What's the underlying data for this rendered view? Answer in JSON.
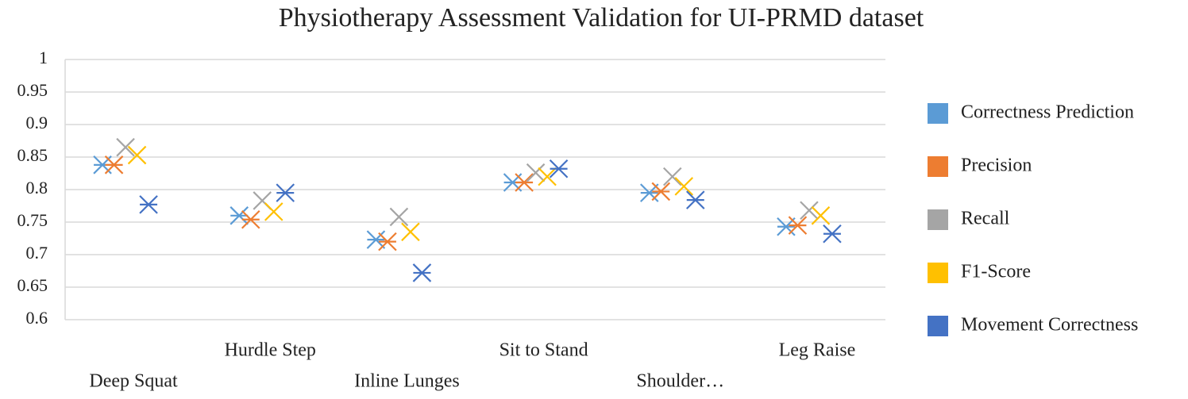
{
  "chart_data": {
    "type": "scatter",
    "title": "Physiotherapy Assessment Validation for UI-PRMD dataset",
    "categories": [
      "Deep Squat",
      "Hurdle Step",
      "Inline Lunges",
      "Sit to Stand",
      "Shoulder…",
      "Leg Raise"
    ],
    "series": [
      {
        "name": "Correctness Prediction",
        "color": "#5b9bd5",
        "marker": "star",
        "values": [
          0.838,
          0.76,
          0.723,
          0.811,
          0.795,
          0.743
        ]
      },
      {
        "name": "Precision",
        "color": "#ed7d31",
        "marker": "star",
        "values": [
          0.838,
          0.754,
          0.72,
          0.811,
          0.797,
          0.745
        ]
      },
      {
        "name": "Recall",
        "color": "#a5a5a5",
        "marker": "x",
        "values": [
          0.865,
          0.783,
          0.758,
          0.826,
          0.82,
          0.768
        ]
      },
      {
        "name": "F1-Score",
        "color": "#ffc000",
        "marker": "x",
        "values": [
          0.853,
          0.766,
          0.735,
          0.82,
          0.805,
          0.76
        ]
      },
      {
        "name": "Movement Correctness",
        "color": "#4472c4",
        "marker": "star",
        "values": [
          0.777,
          0.795,
          0.672,
          0.832,
          0.784,
          0.732
        ]
      }
    ],
    "ylim": [
      0.6,
      1
    ],
    "yticks": [
      0.6,
      0.65,
      0.7,
      0.75,
      0.8,
      0.85,
      0.9,
      0.95,
      1
    ],
    "grid": true,
    "legend": "right"
  }
}
